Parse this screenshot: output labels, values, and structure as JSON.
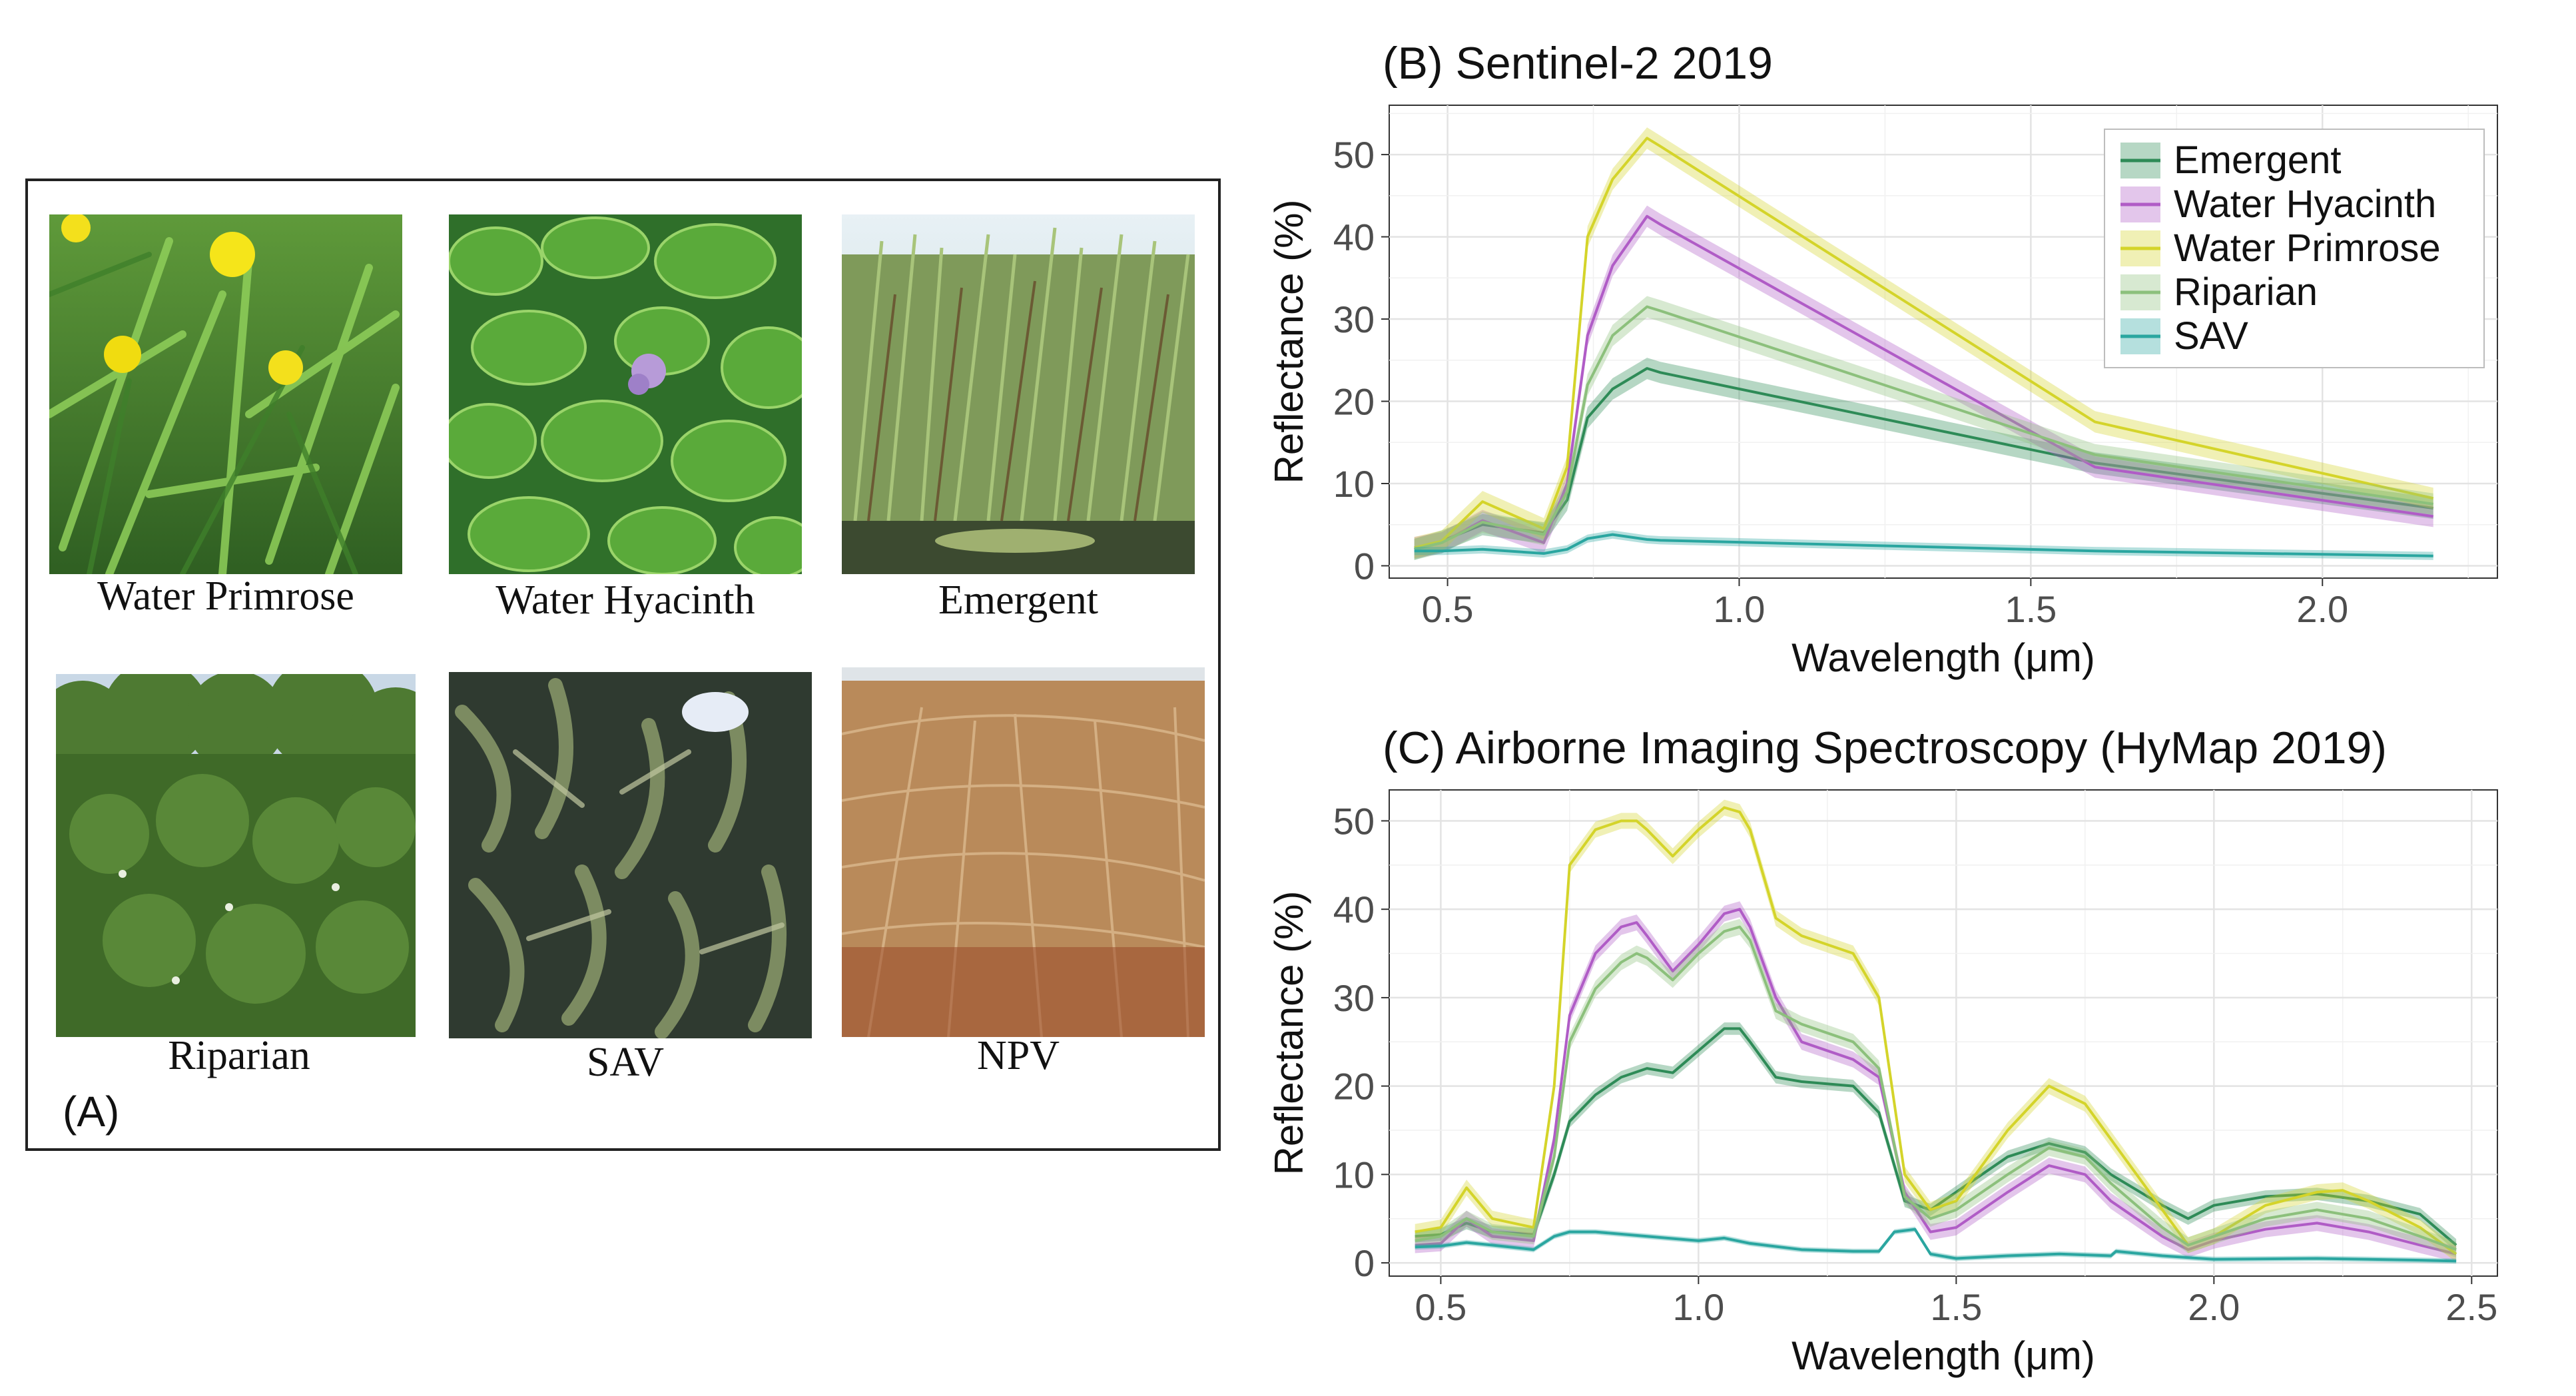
{
  "panel_a": {
    "label": "(A)",
    "photos": [
      {
        "caption": "Water Primrose",
        "icon": "water-primrose-photo"
      },
      {
        "caption": "Water Hyacinth",
        "icon": "water-hyacinth-photo"
      },
      {
        "caption": "Emergent",
        "icon": "emergent-photo"
      },
      {
        "caption": "Riparian",
        "icon": "riparian-photo"
      },
      {
        "caption": "SAV",
        "icon": "sav-photo"
      },
      {
        "caption": "NPV",
        "icon": "npv-photo"
      }
    ]
  },
  "chart_data": [
    {
      "type": "line",
      "title": "(B) Sentinel-2 2019",
      "xlabel": "Wavelength (μm)",
      "ylabel": "Reflectance (%)",
      "xlim": [
        0.4,
        2.3
      ],
      "ylim": [
        -1.5,
        56
      ],
      "xticks": [
        0.5,
        1.0,
        1.5,
        2.0
      ],
      "xtick_labels": [
        "0.5",
        "1.0",
        "1.5",
        "2.0"
      ],
      "yticks": [
        0,
        10,
        20,
        30,
        40,
        50
      ],
      "ytick_labels": [
        "0",
        "10",
        "20",
        "30",
        "40",
        "50"
      ],
      "grid": true,
      "legend": "top-right",
      "series": [
        {
          "name": "Emergent",
          "color": "#2e8b57",
          "x": [
            0.443,
            0.49,
            0.56,
            0.665,
            0.705,
            0.74,
            0.783,
            0.842,
            0.865,
            1.61,
            2.19
          ],
          "y": [
            2.0,
            3.0,
            5.0,
            4.0,
            8.0,
            18.0,
            21.5,
            24.0,
            23.5,
            12.5,
            7.0
          ],
          "band": 1.3
        },
        {
          "name": "Water Hyacinth",
          "color": "#b05cc6",
          "x": [
            0.443,
            0.49,
            0.56,
            0.665,
            0.705,
            0.74,
            0.783,
            0.842,
            0.865,
            1.61,
            2.19
          ],
          "y": [
            2.2,
            2.8,
            5.5,
            2.8,
            10.0,
            28.0,
            36.5,
            42.5,
            41.5,
            12.0,
            6.0
          ],
          "band": 1.3
        },
        {
          "name": "Water Primrose",
          "color": "#d4d42a",
          "x": [
            0.443,
            0.49,
            0.56,
            0.665,
            0.705,
            0.74,
            0.783,
            0.842,
            0.865,
            1.61,
            2.19
          ],
          "y": [
            2.2,
            3.0,
            7.8,
            4.5,
            12.0,
            40.0,
            47.0,
            52.0,
            51.0,
            17.5,
            8.2
          ],
          "band": 1.3
        },
        {
          "name": "Riparian",
          "color": "#8cc07c",
          "x": [
            0.443,
            0.49,
            0.56,
            0.665,
            0.705,
            0.74,
            0.783,
            0.842,
            0.865,
            1.61,
            2.19
          ],
          "y": [
            2.0,
            2.8,
            5.3,
            3.8,
            9.0,
            22.0,
            28.0,
            31.5,
            31.0,
            13.5,
            7.5
          ],
          "band": 1.3
        },
        {
          "name": "SAV",
          "color": "#2aa6a0",
          "x": [
            0.443,
            0.49,
            0.56,
            0.665,
            0.705,
            0.74,
            0.783,
            0.842,
            0.865,
            1.61,
            2.19
          ],
          "y": [
            1.8,
            1.8,
            2.0,
            1.5,
            2.0,
            3.3,
            3.8,
            3.2,
            3.1,
            1.8,
            1.2
          ],
          "band": 0.5
        }
      ]
    },
    {
      "type": "line",
      "title": "(C) Airborne Imaging Spectroscopy (HyMap 2019)",
      "xlabel": "Wavelength (μm)",
      "ylabel": "Reflectance (%)",
      "xlim": [
        0.4,
        2.55
      ],
      "ylim": [
        -1.5,
        53.5
      ],
      "xticks": [
        0.5,
        1.0,
        1.5,
        2.0,
        2.5
      ],
      "xtick_labels": [
        "0.5",
        "1.0",
        "1.5",
        "2.0",
        "2.5"
      ],
      "yticks": [
        0,
        10,
        20,
        30,
        40,
        50
      ],
      "ytick_labels": [
        "0",
        "10",
        "20",
        "30",
        "40",
        "50"
      ],
      "grid": true,
      "series": [
        {
          "name": "Emergent",
          "color": "#2e8b57",
          "x": [
            0.45,
            0.5,
            0.55,
            0.6,
            0.68,
            0.72,
            0.75,
            0.8,
            0.85,
            0.9,
            0.95,
            1.0,
            1.05,
            1.08,
            1.1,
            1.15,
            1.2,
            1.3,
            1.35,
            1.4,
            1.45,
            1.5,
            1.6,
            1.68,
            1.75,
            1.8,
            1.9,
            1.95,
            2.0,
            2.1,
            2.2,
            2.3,
            2.4,
            2.47
          ],
          "y": [
            3.0,
            3.2,
            4.5,
            3.5,
            3.2,
            10,
            16,
            19,
            21,
            22,
            21.5,
            24,
            26.5,
            26.5,
            25,
            21,
            20.5,
            20,
            17,
            7,
            6,
            8,
            12,
            13.5,
            12.5,
            10,
            6.5,
            5,
            6.5,
            7.5,
            7.8,
            7,
            5.5,
            2
          ],
          "band": 0.7
        },
        {
          "name": "Water Hyacinth",
          "color": "#b05cc6",
          "x": [
            0.45,
            0.5,
            0.55,
            0.6,
            0.68,
            0.72,
            0.75,
            0.8,
            0.85,
            0.88,
            0.9,
            0.95,
            1.0,
            1.05,
            1.08,
            1.1,
            1.15,
            1.2,
            1.3,
            1.35,
            1.4,
            1.45,
            1.5,
            1.6,
            1.68,
            1.75,
            1.8,
            1.9,
            1.95,
            2.0,
            2.1,
            2.2,
            2.3,
            2.4,
            2.47
          ],
          "y": [
            2.0,
            2.2,
            5.0,
            3.0,
            2.5,
            14,
            28,
            35,
            38,
            38.5,
            37,
            33,
            36,
            39.5,
            40,
            38,
            30,
            25,
            23,
            21,
            8,
            3.5,
            4,
            8,
            11,
            10,
            7,
            3,
            1.5,
            2.5,
            3.8,
            4.5,
            3.5,
            2,
            1
          ],
          "band": 0.9
        },
        {
          "name": "Water Primrose",
          "color": "#d4d42a",
          "x": [
            0.45,
            0.5,
            0.55,
            0.6,
            0.68,
            0.72,
            0.75,
            0.8,
            0.85,
            0.88,
            0.9,
            0.95,
            1.0,
            1.05,
            1.08,
            1.1,
            1.15,
            1.2,
            1.3,
            1.35,
            1.4,
            1.45,
            1.5,
            1.6,
            1.68,
            1.75,
            1.8,
            1.9,
            1.95,
            2.0,
            2.1,
            2.2,
            2.25,
            2.3,
            2.4,
            2.47
          ],
          "y": [
            3.5,
            4.0,
            8.5,
            5.0,
            4.0,
            20,
            45,
            49,
            50,
            50,
            49,
            46,
            49,
            51.5,
            51,
            49,
            39,
            37,
            35,
            30,
            10,
            6,
            7,
            15,
            20,
            18,
            14,
            6,
            2,
            3,
            6.5,
            8,
            8.2,
            7,
            4,
            1
          ],
          "band": 0.9
        },
        {
          "name": "Riparian",
          "color": "#8cc07c",
          "x": [
            0.45,
            0.5,
            0.55,
            0.6,
            0.68,
            0.72,
            0.75,
            0.8,
            0.85,
            0.88,
            0.9,
            0.95,
            1.0,
            1.05,
            1.08,
            1.1,
            1.15,
            1.2,
            1.3,
            1.35,
            1.4,
            1.45,
            1.5,
            1.6,
            1.68,
            1.75,
            1.8,
            1.9,
            1.95,
            2.0,
            2.1,
            2.2,
            2.3,
            2.4,
            2.47
          ],
          "y": [
            2.5,
            3.0,
            5.0,
            3.5,
            3.0,
            12,
            25,
            31,
            34,
            35,
            34.5,
            32,
            35,
            37.5,
            38,
            36.5,
            28.5,
            27,
            25,
            22,
            7.5,
            5,
            6,
            10,
            13,
            12,
            9,
            4,
            2,
            3,
            5,
            6,
            5,
            3,
            1.5
          ],
          "band": 0.9
        },
        {
          "name": "SAV",
          "color": "#2aa6a0",
          "x": [
            0.45,
            0.5,
            0.55,
            0.6,
            0.68,
            0.72,
            0.75,
            0.8,
            0.9,
            1.0,
            1.05,
            1.1,
            1.2,
            1.3,
            1.35,
            1.38,
            1.42,
            1.45,
            1.5,
            1.6,
            1.7,
            1.8,
            1.81,
            1.9,
            2.0,
            2.2,
            2.4,
            2.47
          ],
          "y": [
            1.8,
            1.9,
            2.3,
            2.0,
            1.5,
            3.0,
            3.5,
            3.5,
            3.0,
            2.5,
            2.8,
            2.2,
            1.5,
            1.3,
            1.3,
            3.5,
            3.8,
            1.0,
            0.5,
            0.8,
            1.0,
            0.8,
            1.3,
            0.8,
            0.4,
            0.5,
            0.3,
            0.2
          ],
          "band": 0.3
        }
      ]
    }
  ]
}
